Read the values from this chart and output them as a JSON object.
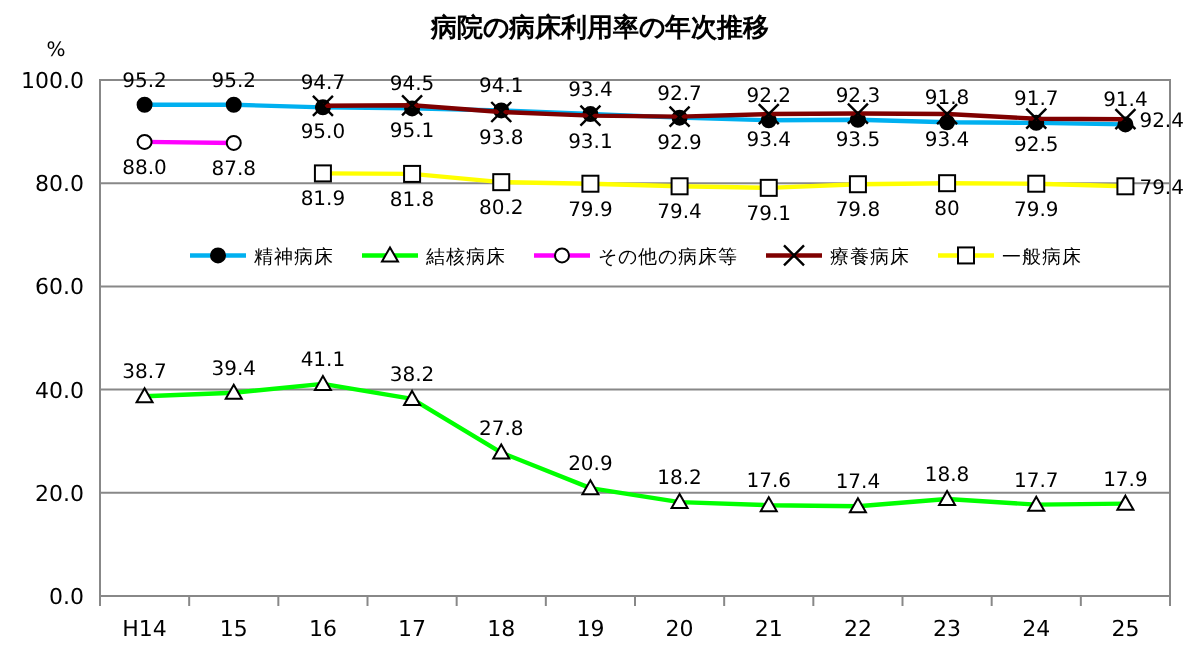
{
  "chart_data": {
    "type": "line",
    "title": "病院の病床利用率の年次推移",
    "ylabel": "%",
    "categories": [
      "H14",
      "15",
      "16",
      "17",
      "18",
      "19",
      "20",
      "21",
      "22",
      "23",
      "24",
      "25"
    ],
    "ylim": [
      0,
      100
    ],
    "yticks": [
      {
        "value": 0,
        "label": "0.0"
      },
      {
        "value": 20,
        "label": "20.0"
      },
      {
        "value": 40,
        "label": "40.0"
      },
      {
        "value": 60,
        "label": "60.0"
      },
      {
        "value": 80,
        "label": "80.0"
      },
      {
        "value": 100,
        "label": "100.0"
      }
    ],
    "grid": "y",
    "legend": "center",
    "series": [
      {
        "name": "精神病床",
        "color": "#00b0f0",
        "marker": "circle",
        "values": [
          95.2,
          95.2,
          94.7,
          94.5,
          94.1,
          93.4,
          92.7,
          92.2,
          92.3,
          91.8,
          91.7,
          91.4
        ],
        "value_labels": [
          "95.2",
          "95.2",
          "94.7",
          "94.5",
          "94.1",
          "93.4",
          "92.7",
          "92.2",
          "92.3",
          "91.8",
          "91.7",
          "91.4"
        ]
      },
      {
        "name": "結核病床",
        "color": "#00ff00",
        "marker": "triangle",
        "values": [
          38.7,
          39.4,
          41.1,
          38.2,
          27.8,
          20.9,
          18.2,
          17.6,
          17.4,
          18.8,
          17.7,
          17.9
        ],
        "value_labels": [
          "38.7",
          "39.4",
          "41.1",
          "38.2",
          "27.8",
          "20.9",
          "18.2",
          "17.6",
          "17.4",
          "18.8",
          "17.7",
          "17.9"
        ]
      },
      {
        "name": "その他の病床等",
        "color": "#ff00ff",
        "marker": "circle",
        "values": [
          88.0,
          87.8,
          null,
          null,
          null,
          null,
          null,
          null,
          null,
          null,
          null,
          null
        ],
        "value_labels": [
          "88.0",
          "87.8",
          null,
          null,
          null,
          null,
          null,
          null,
          null,
          null,
          null,
          null
        ]
      },
      {
        "name": "療養病床",
        "color": "#7f0000",
        "marker": "cross",
        "values": [
          null,
          null,
          95.0,
          95.1,
          93.8,
          93.1,
          92.9,
          93.4,
          93.5,
          93.4,
          92.5,
          92.4
        ],
        "value_labels": [
          null,
          null,
          "95.0",
          "95.1",
          "93.8",
          "93.1",
          "92.9",
          "93.4",
          "93.5",
          "93.4",
          "92.5",
          "92.4"
        ]
      },
      {
        "name": "一般病床",
        "color": "#ffff00",
        "marker": "square",
        "values": [
          null,
          null,
          81.9,
          81.8,
          80.2,
          79.9,
          79.4,
          79.1,
          79.8,
          80,
          79.9,
          79.4
        ],
        "value_labels": [
          null,
          null,
          "81.9",
          "81.8",
          "80.2",
          "79.9",
          "79.4",
          "79.1",
          "79.8",
          "80",
          "79.9",
          "79.4"
        ]
      }
    ]
  }
}
